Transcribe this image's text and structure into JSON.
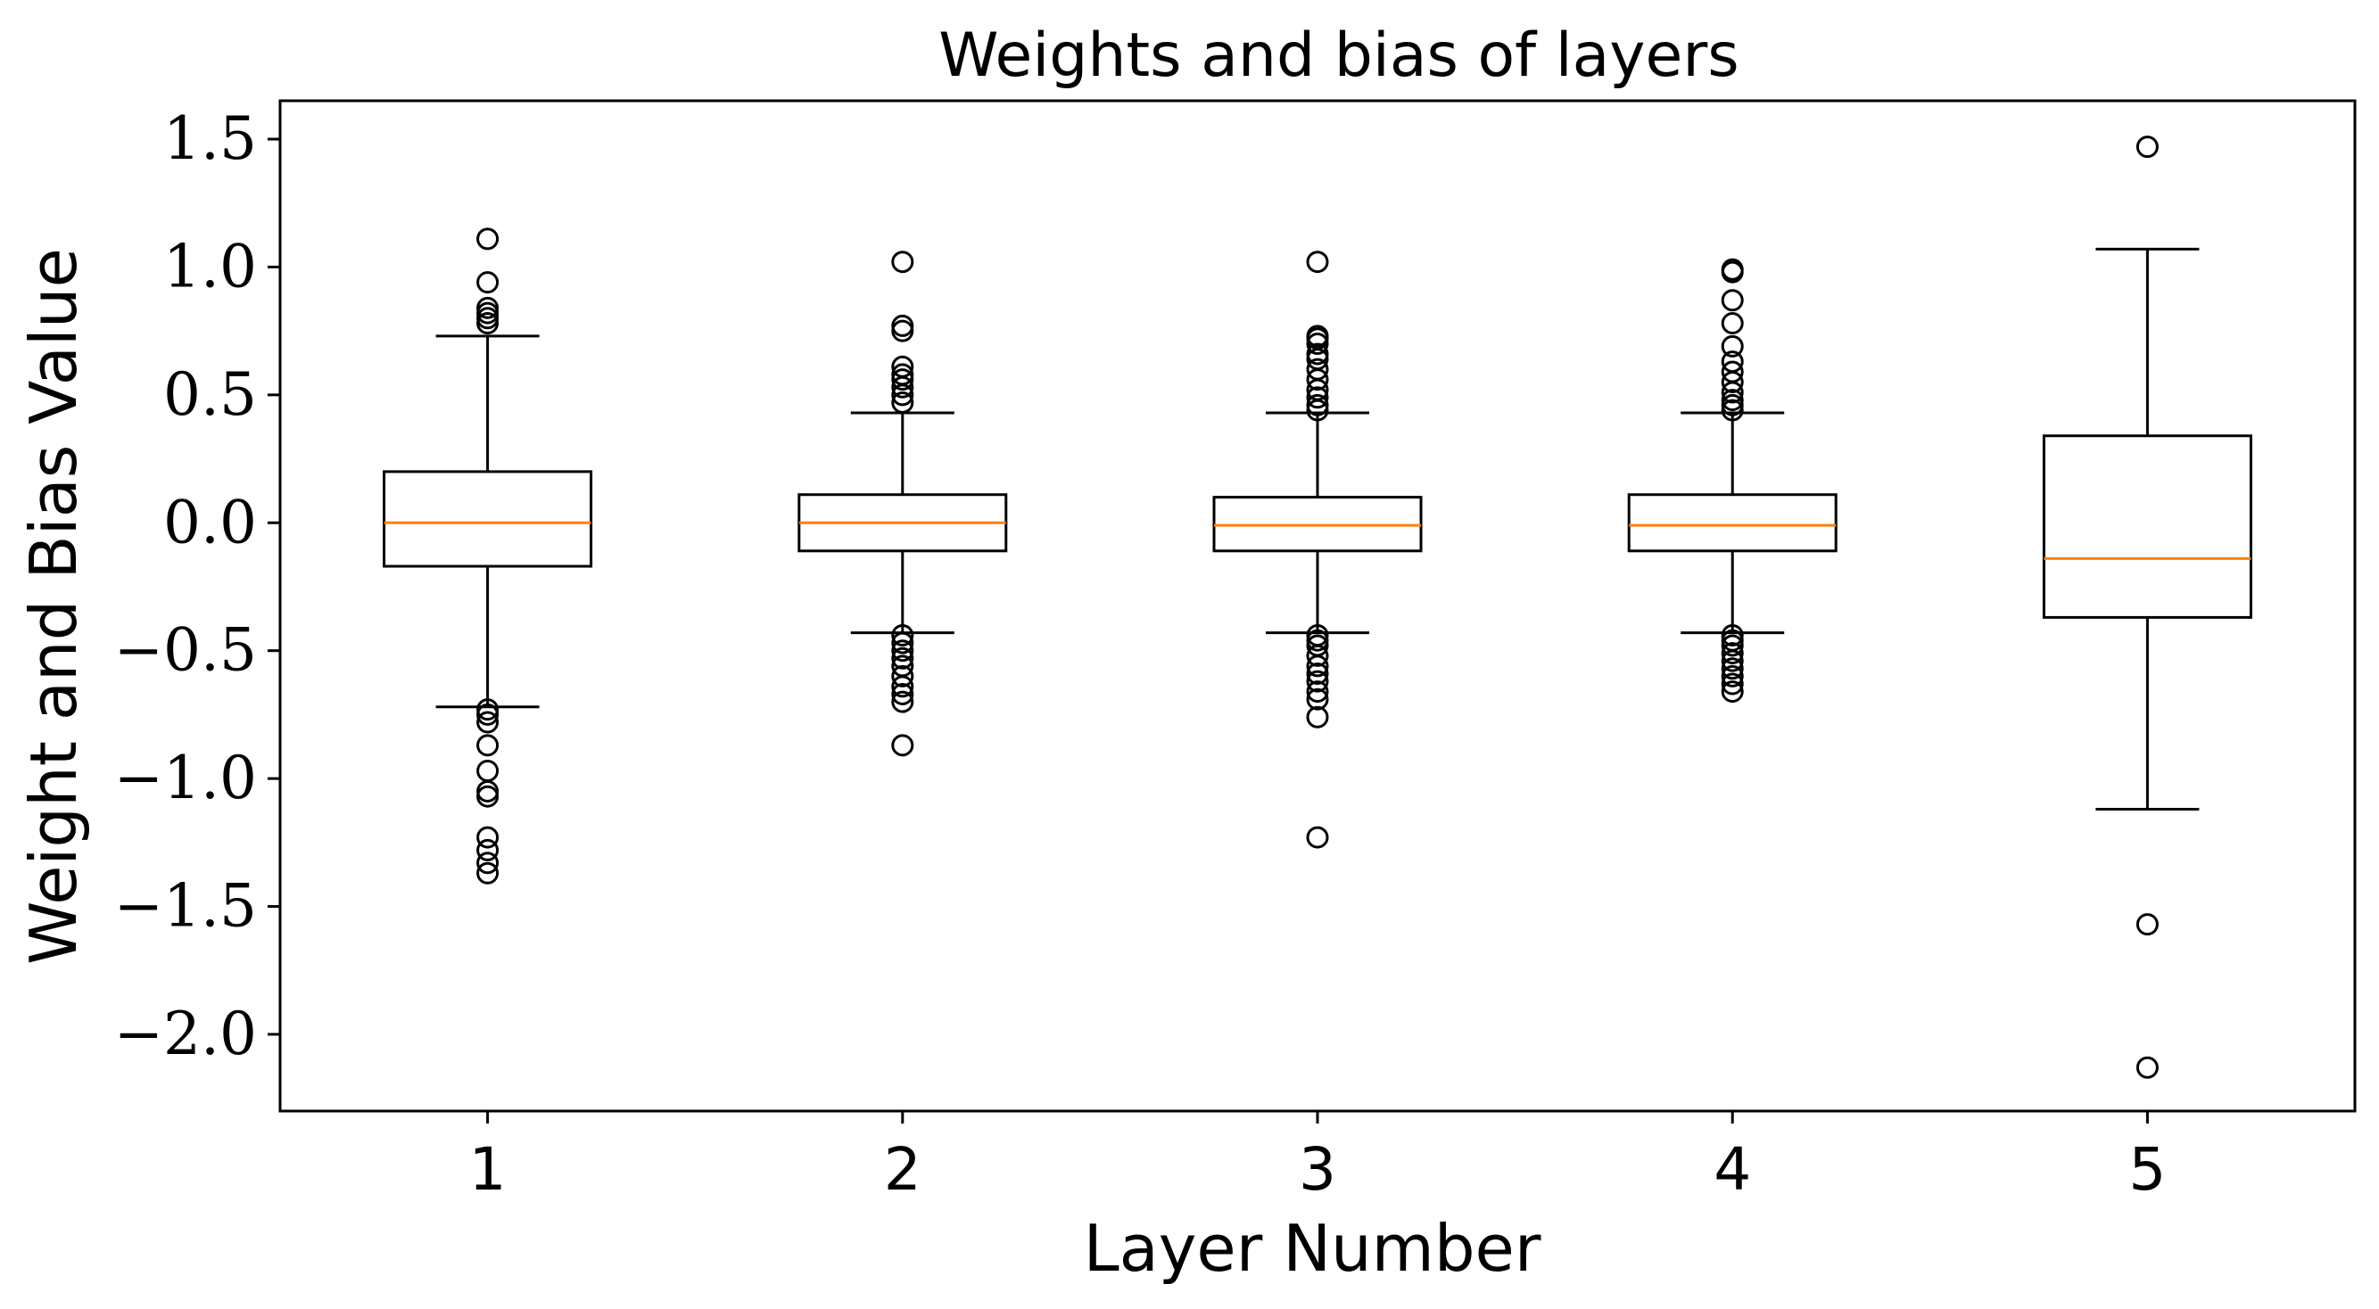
{
  "chart_data": {
    "type": "boxplot",
    "title": "Weights and bias of layers",
    "xlabel": "Layer Number",
    "ylabel": "Weight and Bias Value",
    "ylim": [
      -2.3,
      1.65
    ],
    "yticks": [
      -2.0,
      -1.5,
      -1.0,
      -0.5,
      0.0,
      0.5,
      1.0,
      1.5
    ],
    "ytick_labels": [
      "−2.0",
      "−1.5",
      "−1.0",
      "−0.5",
      "0.0",
      "0.5",
      "1.0",
      "1.5"
    ],
    "categories": [
      "1",
      "2",
      "3",
      "4",
      "5"
    ],
    "grid": false,
    "colors": {
      "box": "#000000",
      "median": "#ff7f0e",
      "flier": "#000000"
    },
    "boxes": [
      {
        "label": "1",
        "whislo": -0.72,
        "q1": -0.17,
        "med": 0.0,
        "q3": 0.2,
        "whishi": 0.73,
        "fliers": [
          1.11,
          0.94,
          0.84,
          0.82,
          0.8,
          0.78,
          -0.73,
          -0.75,
          -0.78,
          -0.87,
          -0.97,
          -1.05,
          -1.07,
          -1.23,
          -1.28,
          -1.33,
          -1.37
        ]
      },
      {
        "label": "2",
        "whislo": -0.43,
        "q1": -0.11,
        "med": 0.0,
        "q3": 0.11,
        "whishi": 0.43,
        "fliers": [
          1.02,
          0.77,
          0.75,
          0.61,
          0.58,
          0.56,
          0.53,
          0.5,
          0.47,
          -0.44,
          -0.47,
          -0.5,
          -0.53,
          -0.56,
          -0.6,
          -0.64,
          -0.67,
          -0.7,
          -0.87
        ]
      },
      {
        "label": "3",
        "whislo": -0.43,
        "q1": -0.11,
        "med": -0.01,
        "q3": 0.1,
        "whishi": 0.43,
        "fliers": [
          1.02,
          0.73,
          0.72,
          0.7,
          0.66,
          0.64,
          0.6,
          0.56,
          0.52,
          0.49,
          0.46,
          0.44,
          -0.44,
          -0.46,
          -0.48,
          -0.52,
          -0.56,
          -0.59,
          -0.62,
          -0.66,
          -0.69,
          -0.76,
          -1.23
        ]
      },
      {
        "label": "4",
        "whislo": -0.43,
        "q1": -0.11,
        "med": -0.01,
        "q3": 0.11,
        "whishi": 0.43,
        "fliers": [
          0.99,
          0.98,
          0.87,
          0.78,
          0.69,
          0.63,
          0.59,
          0.55,
          0.51,
          0.48,
          0.46,
          0.44,
          -0.44,
          -0.46,
          -0.48,
          -0.51,
          -0.54,
          -0.57,
          -0.6,
          -0.63,
          -0.66
        ]
      },
      {
        "label": "5",
        "whislo": -1.12,
        "q1": -0.37,
        "med": -0.14,
        "q3": 0.34,
        "whishi": 1.07,
        "fliers": [
          1.47,
          -1.57,
          -2.13
        ]
      }
    ]
  }
}
